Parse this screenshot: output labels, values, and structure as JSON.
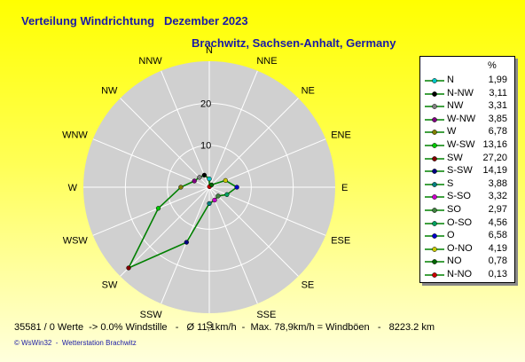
{
  "header": {
    "title": "Verteilung Windrichtung   Dezember 2023",
    "location": "Brachwitz, Sachsen-Anhalt, Germany"
  },
  "legend": {
    "unit": "%",
    "items": [
      {
        "name": "N",
        "value": "1,99",
        "color": "#00c8c8"
      },
      {
        "name": "N-NW",
        "value": "3,11",
        "color": "#000000"
      },
      {
        "name": "NW",
        "value": "3,31",
        "color": "#808080"
      },
      {
        "name": "W-NW",
        "value": "3,85",
        "color": "#800080"
      },
      {
        "name": "W",
        "value": "6,78",
        "color": "#808000"
      },
      {
        "name": "W-SW",
        "value": "13,16",
        "color": "#00c800"
      },
      {
        "name": "SW",
        "value": "27,20",
        "color": "#800000"
      },
      {
        "name": "S-SW",
        "value": "14,19",
        "color": "#000080"
      },
      {
        "name": "S",
        "value": "3,88",
        "color": "#008080"
      },
      {
        "name": "S-SO",
        "value": "3,32",
        "color": "#c800c8"
      },
      {
        "name": "SO",
        "value": "2,97",
        "color": "#408040"
      },
      {
        "name": "O-SO",
        "value": "4,56",
        "color": "#00a060"
      },
      {
        "name": "O",
        "value": "6,58",
        "color": "#0000c8"
      },
      {
        "name": "O-NO",
        "value": "4,19",
        "color": "#c8c800"
      },
      {
        "name": "NO",
        "value": "0,78",
        "color": "#006400"
      },
      {
        "name": "N-NO",
        "value": "0,13",
        "color": "#c80000"
      }
    ]
  },
  "chart_data": {
    "type": "radar",
    "directions": [
      "N",
      "NNE",
      "NE",
      "ENE",
      "E",
      "ESE",
      "SE",
      "SSE",
      "S",
      "SSW",
      "SW",
      "WSW",
      "W",
      "WNW",
      "NW",
      "NNW"
    ],
    "values": [
      1.99,
      0.13,
      0.78,
      4.19,
      6.58,
      4.56,
      2.97,
      3.32,
      3.88,
      14.19,
      27.2,
      13.16,
      6.78,
      3.85,
      3.31,
      3.11
    ],
    "ring_labels": [
      "10",
      "20"
    ],
    "r_max": 30,
    "line_color": "#008000",
    "area_color": "#d0d0d0"
  },
  "footer": {
    "stats": "35581 / 0 Werte  -> 0.0% Windstille   -   Ø 11,1km/h  -  Max. 78,9km/h = Windböen   -   8223.2 km",
    "credit": "© WsWin32  -  Wetterstation Brachwitz"
  }
}
